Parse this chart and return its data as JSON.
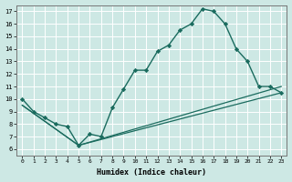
{
  "xlabel": "Humidex (Indice chaleur)",
  "xlim": [
    -0.5,
    23.5
  ],
  "ylim": [
    5.5,
    17.5
  ],
  "xticks": [
    0,
    1,
    2,
    3,
    4,
    5,
    6,
    7,
    8,
    9,
    10,
    11,
    12,
    13,
    14,
    15,
    16,
    17,
    18,
    19,
    20,
    21,
    22,
    23
  ],
  "yticks": [
    6,
    7,
    8,
    9,
    10,
    11,
    12,
    13,
    14,
    15,
    16,
    17
  ],
  "bg_color": "#cde8e4",
  "line_color": "#1a6b5e",
  "grid_color": "#ffffff",
  "line1_x": [
    0,
    1,
    2,
    3,
    4,
    5,
    6,
    7,
    8,
    9,
    10,
    11,
    12,
    13,
    14,
    15,
    16,
    17,
    18,
    19,
    20,
    21,
    22,
    23
  ],
  "line1_y": [
    10.0,
    9.0,
    8.5,
    8.0,
    7.8,
    6.3,
    7.2,
    7.0,
    9.3,
    10.8,
    12.3,
    12.3,
    13.8,
    14.3,
    15.5,
    16.0,
    17.2,
    17.0,
    16.0,
    14.0,
    13.0,
    11.0,
    11.0,
    10.5
  ],
  "line2_x": [
    0,
    5,
    23
  ],
  "line2_y": [
    9.5,
    6.3,
    10.5
  ],
  "line3_x": [
    0,
    5,
    23
  ],
  "line3_y": [
    9.5,
    6.3,
    11.0
  ]
}
